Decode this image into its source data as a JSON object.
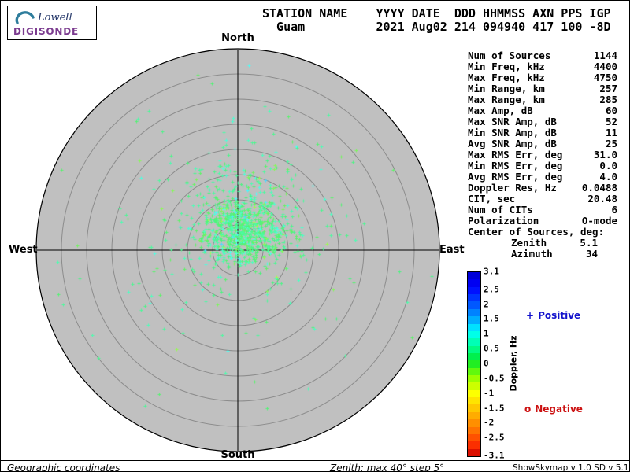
{
  "logo": {
    "name": "Lowell",
    "product": "DIGISONDE",
    "name_color": "#1c2f63",
    "product_color": "#7b3b8f",
    "swoosh_color": "#2e7d9c"
  },
  "header": {
    "line1": "STATION NAME    YYYY DATE  DDD HHMMSS AXN PPS IGP",
    "line2": "  Guam          2021 Aug02 214 094940 417 100 -8D"
  },
  "compass": {
    "north": "North",
    "south": "South",
    "east": "East",
    "west": "West"
  },
  "stats": {
    "rows": [
      {
        "label": "Num of Sources",
        "value": "1144"
      },
      {
        "label": "Min Freq, kHz",
        "value": "4400"
      },
      {
        "label": "Max Freq, kHz",
        "value": "4750"
      },
      {
        "label": "Min Range, km",
        "value": "257"
      },
      {
        "label": "Max Range, km",
        "value": "285"
      },
      {
        "label": "Max Amp, dB",
        "value": "60"
      },
      {
        "label": "Max SNR Amp, dB",
        "value": "52"
      },
      {
        "label": "Min SNR Amp, dB",
        "value": "11"
      },
      {
        "label": "Avg SNR Amp, dB",
        "value": "25"
      },
      {
        "label": "Max RMS Err, deg",
        "value": "31.0"
      },
      {
        "label": "Min RMS Err, deg",
        "value": "0.0"
      },
      {
        "label": "Avg RMS Err, deg",
        "value": "4.0"
      },
      {
        "label": "Doppler Res, Hz",
        "value": "0.0488"
      },
      {
        "label": "CIT, sec",
        "value": "20.48"
      },
      {
        "label": "Num of CITs",
        "value": "6"
      },
      {
        "label": "Polarization",
        "value": "O-mode"
      },
      {
        "label": "Center of Sources, deg:",
        "value": ""
      },
      {
        "label": "Zenith",
        "value": "5.1",
        "indent": true
      },
      {
        "label": "Azimuth",
        "value": "34",
        "indent": true
      }
    ]
  },
  "colorbar": {
    "title": "Doppler, Hz",
    "min": -3.1,
    "max": 3.1,
    "segments": 25,
    "ticks": [
      "3.1",
      "2.5",
      "2",
      "1.5",
      "1",
      "0.5",
      "0",
      "-0.5",
      "-1",
      "-1.5",
      "-2",
      "-2.5",
      "-3.1"
    ],
    "stops": [
      {
        "v": 3.1,
        "c": "#0000cd"
      },
      {
        "v": 2.6,
        "c": "#0000ff"
      },
      {
        "v": 2.0,
        "c": "#0055ff"
      },
      {
        "v": 1.5,
        "c": "#00aaff"
      },
      {
        "v": 1.1,
        "c": "#00ffff"
      },
      {
        "v": 0.6,
        "c": "#00ff99"
      },
      {
        "v": 0.2,
        "c": "#00ee44"
      },
      {
        "v": 0.0,
        "c": "#22ee22"
      },
      {
        "v": -0.4,
        "c": "#88ff00"
      },
      {
        "v": -1.0,
        "c": "#ffff00"
      },
      {
        "v": -1.6,
        "c": "#ffbb00"
      },
      {
        "v": -2.2,
        "c": "#ff7700"
      },
      {
        "v": -2.7,
        "c": "#ff3300"
      },
      {
        "v": -3.1,
        "c": "#cc0000"
      }
    ]
  },
  "legend": {
    "positive": {
      "marker": "+",
      "label": "Positive",
      "color": "#1111cc"
    },
    "negative": {
      "marker": "o",
      "label": "Negative",
      "color": "#cc1111"
    }
  },
  "footer": {
    "left": "Geographic coordinates",
    "center": "Zenith: max 40°  step 5°",
    "right": "ShowSkymap v 1.0  SD v 5.1"
  },
  "chart_data": {
    "type": "scatter",
    "projection": "polar-skymap",
    "title": "Skymap of ionospheric Doppler sources",
    "station": "Guam",
    "date": "2021 Aug02",
    "day_of_year": "214",
    "time_hhmmss": "094940",
    "coordinates": "Geographic",
    "zenith_max_deg": 40,
    "zenith_step_deg": 5,
    "num_rings": 8,
    "num_points": 1144,
    "center_of_sources_deg": {
      "zenith": 5.1,
      "azimuth": 34
    },
    "doppler_scale_hz": {
      "min": -3.1,
      "max": 3.1
    },
    "dominant_point_doppler_hz": "approx 0 to +1 Hz (light green to cyan cluster, slightly north-east of zenith)",
    "disk_color": "#c0c0c0",
    "ring_color": "#8c8c8c",
    "axis_color": "#000000",
    "generator": {
      "seed": 214094940,
      "components": [
        {
          "frac": 0.58,
          "east_deg": 0.8,
          "north_deg": 3.6,
          "sx_deg": 4.2,
          "sy_deg": 3.4
        },
        {
          "frac": 0.27,
          "east_deg": 1.4,
          "north_deg": 6.6,
          "sx_deg": 8.1,
          "sy_deg": 7.5
        },
        {
          "frac": 0.15,
          "east_deg": 0.2,
          "north_deg": 3.4,
          "sx_deg": 15.6,
          "sy_deg": 13.3
        }
      ],
      "doppler_value": {
        "mean": 0.28,
        "sigma": 0.22,
        "cyan_fraction": 0.12,
        "clamp": [
          -0.35,
          1.4
        ]
      },
      "marker": "plus",
      "marker_size_px": 5,
      "lighten": 0.3
    }
  }
}
